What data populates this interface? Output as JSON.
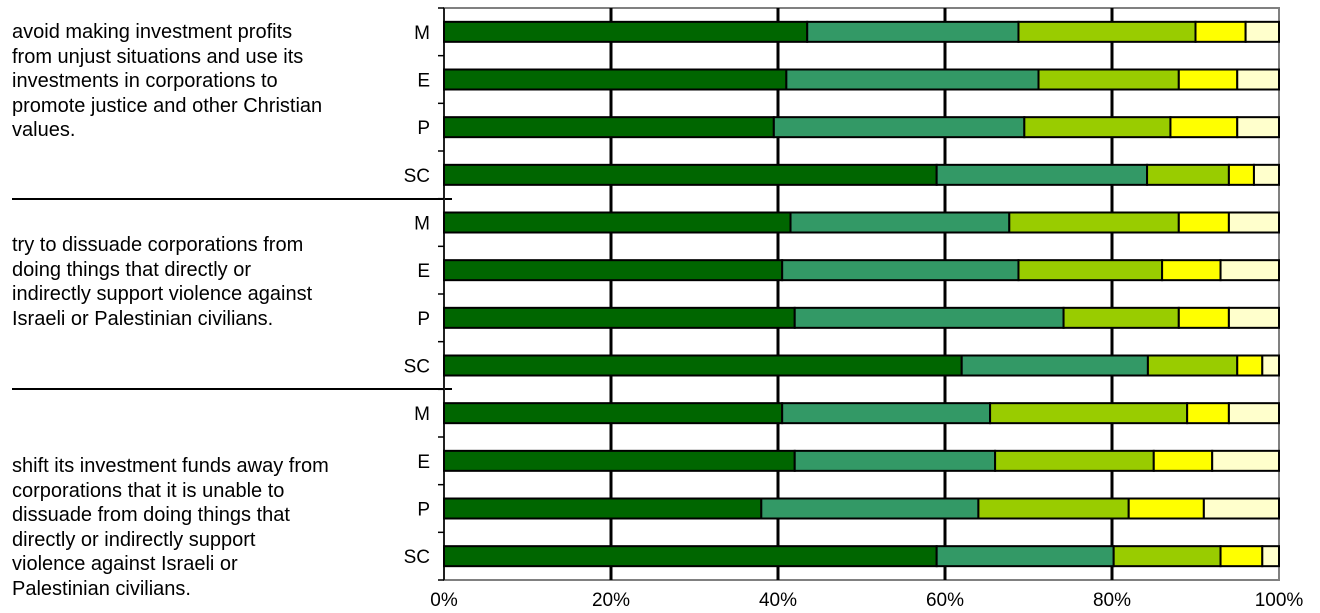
{
  "questions": [
    "avoid making investment profits from unjust situations and use its investments in corporations to promote justice and other Christian values.",
    "try to dissuade corporations from doing things that directly or indirectly support violence against Israeli or Palestinian civilians.",
    "shift its investment funds away from corporations that it is unable to dissuade from doing things that directly or indirectly support violence against Israeli or Palestinian civilians."
  ],
  "chart_data": {
    "type": "bar",
    "orientation": "horizontal",
    "stacked": "100%",
    "categories": [
      "M",
      "E",
      "P",
      "SC",
      "M",
      "E",
      "P",
      "SC",
      "M",
      "E",
      "P",
      "SC"
    ],
    "x_ticks": [
      "0%",
      "20%",
      "40%",
      "60%",
      "80%",
      "100%"
    ],
    "xlim": [
      0,
      100
    ],
    "grid": "vertical major gridlines at 20% intervals",
    "legend": "none",
    "colors": [
      "#006600",
      "#339966",
      "#99cc00",
      "#ffff00",
      "#ffffcc"
    ],
    "segments": [
      [
        43.5,
        25.3,
        21.2,
        6.0,
        4.0
      ],
      [
        41.0,
        30.2,
        16.8,
        7.0,
        5.0
      ],
      [
        39.5,
        30.0,
        17.5,
        8.0,
        5.0
      ],
      [
        59.0,
        25.2,
        9.8,
        3.0,
        3.0
      ],
      [
        41.5,
        26.2,
        20.3,
        6.0,
        6.0
      ],
      [
        40.5,
        28.3,
        17.2,
        7.0,
        7.0
      ],
      [
        42.0,
        32.2,
        13.8,
        6.0,
        6.0
      ],
      [
        62.0,
        22.3,
        10.7,
        3.0,
        2.0
      ],
      [
        40.5,
        24.9,
        23.6,
        5.0,
        6.0
      ],
      [
        42.0,
        24.0,
        19.0,
        7.0,
        8.0
      ],
      [
        38.0,
        26.0,
        18.0,
        9.0,
        9.0
      ],
      [
        59.0,
        21.2,
        12.8,
        5.0,
        2.0
      ]
    ]
  }
}
